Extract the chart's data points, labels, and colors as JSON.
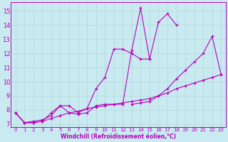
{
  "xlabel": "Windchill (Refroidissement éolien,°C)",
  "bg_color": "#c8eaf0",
  "grid_color": "#b0d8d8",
  "line_color": "#bb00bb",
  "xlim": [
    -0.5,
    23.5
  ],
  "ylim": [
    6.8,
    15.6
  ],
  "yticks": [
    7,
    8,
    9,
    10,
    11,
    12,
    13,
    14,
    15
  ],
  "xticks": [
    0,
    1,
    2,
    3,
    4,
    5,
    6,
    7,
    8,
    9,
    10,
    11,
    12,
    13,
    14,
    15,
    16,
    17,
    18,
    19,
    20,
    21,
    22,
    23
  ],
  "lines": [
    {
      "x": [
        0,
        1,
        2,
        3,
        4,
        5,
        6,
        7,
        8,
        9,
        10,
        11,
        12,
        13,
        14,
        15,
        16,
        17,
        18
      ],
      "y": [
        7.8,
        7.1,
        7.1,
        7.2,
        7.8,
        8.3,
        7.8,
        7.7,
        7.8,
        8.3,
        8.4,
        8.4,
        8.4,
        12.2,
        15.2,
        11.6,
        14.2,
        14.8,
        14.0
      ]
    },
    {
      "x": [
        0,
        1,
        2,
        3,
        4,
        5,
        6,
        7,
        8,
        9,
        10,
        11,
        12,
        13,
        14,
        15
      ],
      "y": [
        7.8,
        7.1,
        7.2,
        7.3,
        7.6,
        8.3,
        8.3,
        7.8,
        8.1,
        9.5,
        10.3,
        12.3,
        12.3,
        12.0,
        11.6,
        11.6
      ]
    },
    {
      "x": [
        0,
        1,
        2,
        3,
        4,
        5,
        6,
        7,
        8,
        9,
        10,
        11,
        12,
        13,
        14,
        15,
        16,
        17,
        18,
        19,
        20,
        21,
        22,
        23
      ],
      "y": [
        7.8,
        7.1,
        7.1,
        7.2,
        7.4,
        7.6,
        7.8,
        7.9,
        8.1,
        8.2,
        8.3,
        8.4,
        8.5,
        8.6,
        8.7,
        8.8,
        9.0,
        9.2,
        9.5,
        9.7,
        9.9,
        10.1,
        10.3,
        10.5
      ]
    },
    {
      "x": [
        13,
        14,
        15,
        16,
        17,
        18,
        19,
        20,
        21,
        22,
        23
      ],
      "y": [
        8.4,
        8.5,
        8.6,
        9.0,
        9.5,
        10.2,
        10.8,
        11.4,
        12.0,
        13.2,
        10.5
      ]
    }
  ]
}
